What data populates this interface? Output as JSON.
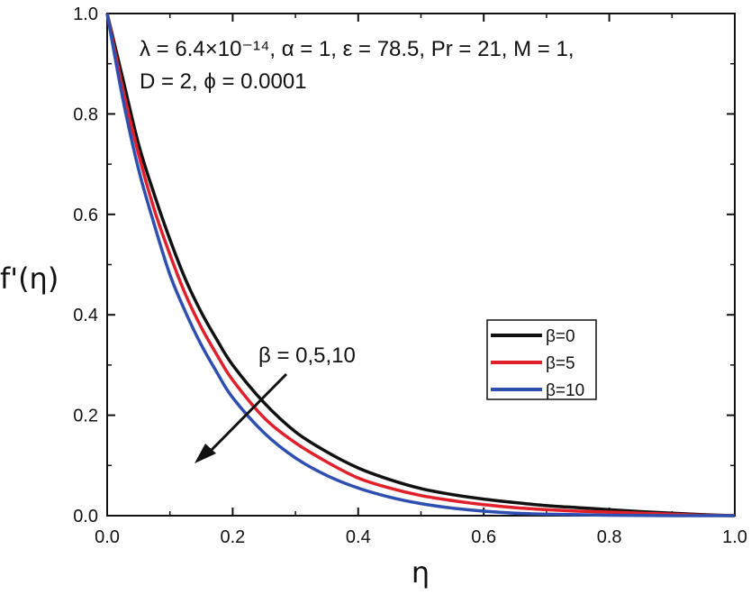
{
  "chart_data": {
    "type": "line",
    "xlabel": "η",
    "ylabel": "f'(η)",
    "xlim": [
      0,
      1
    ],
    "ylim": [
      0,
      1
    ],
    "xticks": [
      0.0,
      0.2,
      0.4,
      0.6,
      0.8,
      1.0
    ],
    "yticks": [
      0.0,
      0.2,
      0.4,
      0.6,
      0.8,
      1.0
    ],
    "xtick_labels": [
      "0.0",
      "0.2",
      "0.4",
      "0.6",
      "0.8",
      "1.0"
    ],
    "ytick_labels": [
      "0.0",
      "0.2",
      "0.4",
      "0.6",
      "0.8",
      "1.0"
    ],
    "grid": false,
    "legend_position": "center-right",
    "parameters_line1": "λ = 6.4×10⁻¹⁴, α = 1, ε = 78.5, Pr = 21, M = 1,",
    "parameters_line2": "D = 2, ϕ = 0.0001",
    "arrow_label": "β = 0,5,10",
    "series": [
      {
        "name": "β=0",
        "color": "#111111",
        "x": [
          0,
          0.025,
          0.05,
          0.075,
          0.1,
          0.125,
          0.15,
          0.175,
          0.2,
          0.25,
          0.3,
          0.35,
          0.4,
          0.45,
          0.5,
          0.55,
          0.6,
          0.65,
          0.7,
          0.75,
          0.8,
          0.85,
          0.9,
          0.95,
          1.0
        ],
        "values": [
          1.0,
          0.87,
          0.74,
          0.64,
          0.55,
          0.47,
          0.405,
          0.35,
          0.3,
          0.225,
          0.167,
          0.127,
          0.095,
          0.072,
          0.054,
          0.042,
          0.033,
          0.026,
          0.02,
          0.016,
          0.012,
          0.008,
          0.005,
          0.002,
          0.0
        ]
      },
      {
        "name": "β=5",
        "color": "#e0202a",
        "x": [
          0,
          0.025,
          0.05,
          0.075,
          0.1,
          0.125,
          0.15,
          0.175,
          0.2,
          0.25,
          0.3,
          0.35,
          0.4,
          0.45,
          0.5,
          0.55,
          0.6,
          0.65,
          0.7,
          0.75,
          0.8,
          0.85,
          0.9,
          0.95,
          1.0
        ],
        "values": [
          1.0,
          0.85,
          0.72,
          0.61,
          0.52,
          0.44,
          0.375,
          0.32,
          0.27,
          0.195,
          0.145,
          0.107,
          0.075,
          0.055,
          0.04,
          0.03,
          0.022,
          0.016,
          0.012,
          0.009,
          0.007,
          0.005,
          0.003,
          0.001,
          0.0
        ]
      },
      {
        "name": "β=10",
        "color": "#2f4fb0",
        "x": [
          0,
          0.025,
          0.05,
          0.075,
          0.1,
          0.125,
          0.15,
          0.175,
          0.2,
          0.25,
          0.3,
          0.35,
          0.4,
          0.45,
          0.5,
          0.55,
          0.6,
          0.65,
          0.7,
          0.75,
          0.8,
          0.85,
          0.9,
          0.95,
          1.0
        ],
        "values": [
          1.0,
          0.83,
          0.69,
          0.58,
          0.48,
          0.405,
          0.34,
          0.285,
          0.235,
          0.165,
          0.115,
          0.08,
          0.055,
          0.037,
          0.024,
          0.015,
          0.009,
          0.005,
          0.003,
          0.002,
          0.001,
          0.0005,
          0.0,
          0.0,
          0.0
        ]
      }
    ]
  }
}
